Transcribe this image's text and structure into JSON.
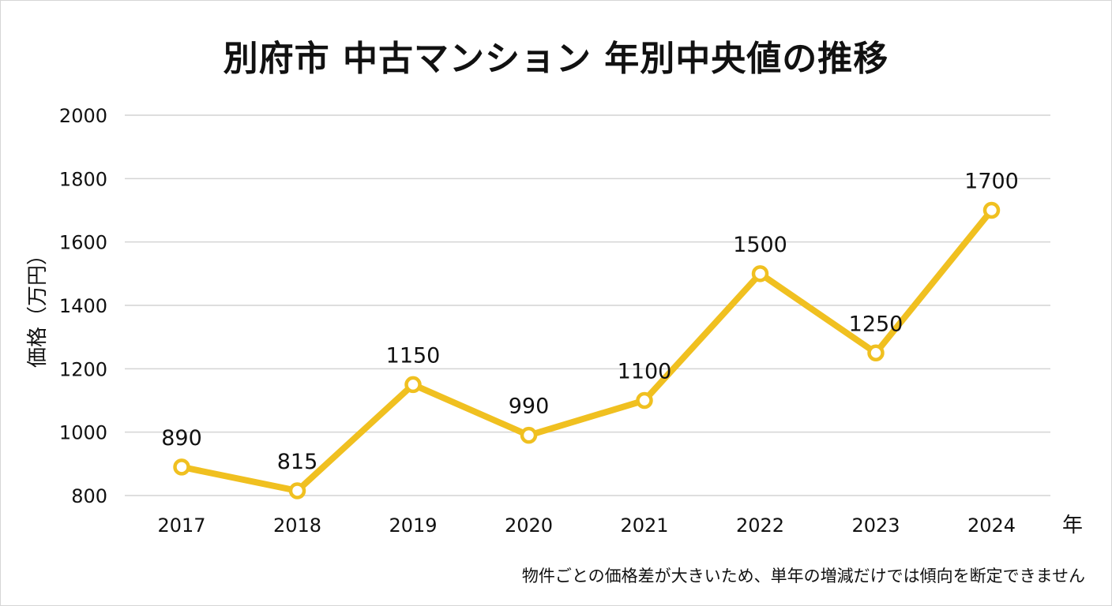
{
  "chart_data": {
    "type": "line",
    "title": "別府市 中古マンション 年別中央値の推移",
    "ylabel": "価格（万円）",
    "xlabel": "年",
    "categories": [
      "2017",
      "2018",
      "2019",
      "2020",
      "2021",
      "2022",
      "2023",
      "2024"
    ],
    "series": [
      {
        "values": [
          890,
          815,
          1150,
          990,
          1100,
          1500,
          1250,
          1700
        ]
      }
    ],
    "ylim": [
      800,
      2000
    ],
    "yticks": [
      800,
      1000,
      1200,
      1400,
      1600,
      1800,
      2000
    ],
    "grid": true,
    "data_labels": true,
    "line_color": "#f0c020",
    "marker_fill": "#ffffff",
    "note": "物件ごとの価格差が大きいため、単年の増減だけでは傾向を断定できません"
  }
}
